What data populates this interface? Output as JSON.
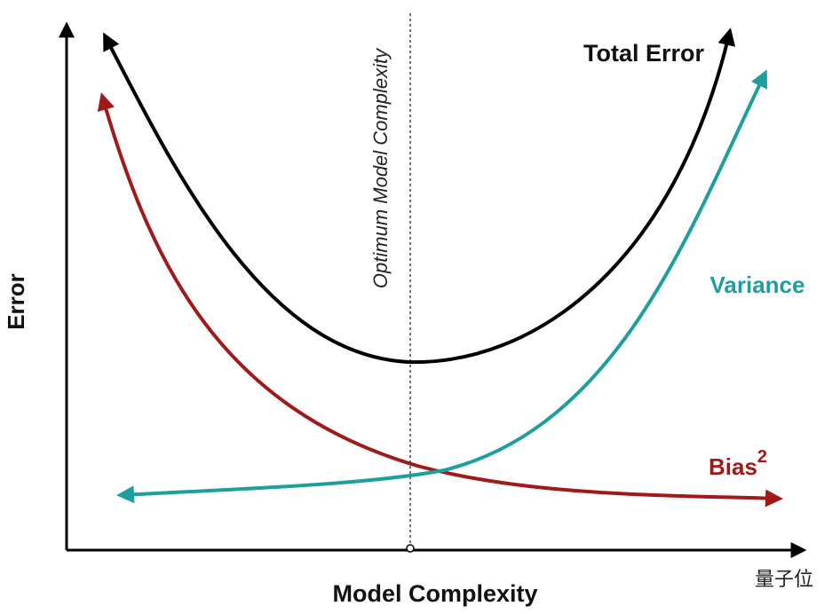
{
  "axes": {
    "x_label": "Model Complexity",
    "y_label": "Error"
  },
  "optimum_label": "Optimum Model Complexity",
  "curves": [
    {
      "label": "Total Error"
    },
    {
      "label": "Variance"
    },
    {
      "label": "Bias",
      "superscript": "2"
    }
  ],
  "watermark": "量子位"
}
